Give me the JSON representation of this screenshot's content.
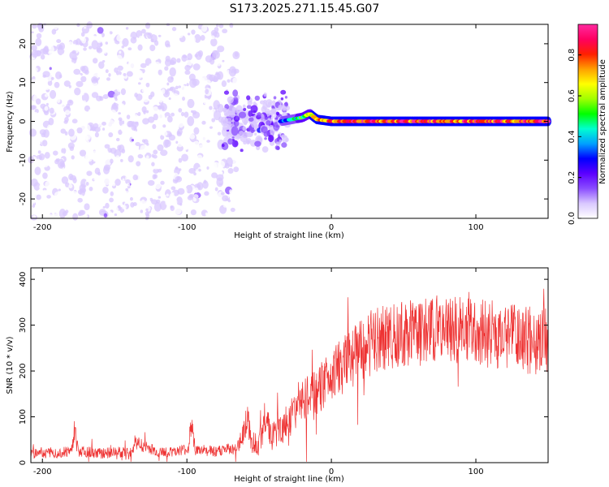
{
  "title": "S173.2025.271.15.45.G07",
  "chart_data": [
    {
      "type": "heatmap",
      "name": "spectrogram",
      "xlabel": "Height of straight line (km)",
      "ylabel": "Frequency (Hz)",
      "xlim": [
        -208,
        150
      ],
      "ylim": [
        -25,
        25
      ],
      "xticks": [
        -200,
        -100,
        0,
        100
      ],
      "yticks": [
        -20,
        -10,
        0,
        10,
        20
      ],
      "colorbar": {
        "label": "Normalized spectral amplitude",
        "range": [
          0,
          0.95
        ],
        "ticks": [
          0,
          0.2,
          0.4,
          0.6,
          0.8
        ],
        "colors": [
          "#ffffff",
          "#d9c8ff",
          "#8a4dff",
          "#5c00ff",
          "#0000ff",
          "#00a0ff",
          "#00ffd0",
          "#00ff00",
          "#a0ff00",
          "#ffff00",
          "#ffa000",
          "#ff2000",
          "#ff0060",
          "#ff2aa0"
        ]
      },
      "series": [
        {
          "name": "scatter_noise",
          "x_range": [
            -208,
            -65
          ],
          "y_range": [
            -25,
            25
          ],
          "amplitude_range": [
            0.02,
            0.12
          ]
        },
        {
          "name": "transition",
          "x_range": [
            -75,
            -30
          ],
          "y_range": [
            -8,
            8
          ],
          "amplitude_range": [
            0.05,
            0.3
          ]
        },
        {
          "name": "main_tone",
          "x": [
            -35,
            -20,
            -15,
            -10,
            0,
            20,
            50,
            80,
            110,
            150
          ],
          "y": [
            0,
            1,
            2,
            0.5,
            0,
            0,
            0,
            0,
            0,
            0
          ],
          "amplitude": [
            0.3,
            0.6,
            0.7,
            0.8,
            0.85,
            0.9,
            0.9,
            0.9,
            0.9,
            0.9
          ]
        }
      ]
    },
    {
      "type": "line",
      "name": "snr",
      "xlabel": "Height of straight line (km)",
      "ylabel": "SNR (10 * v/v)",
      "xlim": [
        -208,
        150
      ],
      "ylim": [
        0,
        425
      ],
      "xticks": [
        -200,
        -100,
        0,
        100
      ],
      "yticks": [
        0,
        100,
        200,
        300,
        400
      ],
      "color": "#ee3333",
      "series": [
        {
          "name": "SNR",
          "x": [
            -208,
            -190,
            -180,
            -178,
            -175,
            -160,
            -138,
            -136,
            -120,
            -99,
            -97,
            -94,
            -80,
            -65,
            -58,
            -55,
            -50,
            -45,
            -42,
            -40,
            -35,
            -30,
            -25,
            -20,
            -10,
            0,
            10,
            20,
            30,
            40,
            50,
            60,
            70,
            80,
            90,
            100,
            110,
            120,
            130,
            140,
            150
          ],
          "mean": [
            20,
            22,
            25,
            70,
            25,
            20,
            25,
            45,
            22,
            28,
            90,
            26,
            25,
            30,
            95,
            45,
            40,
            110,
            60,
            60,
            70,
            90,
            110,
            130,
            150,
            190,
            215,
            240,
            265,
            275,
            285,
            285,
            290,
            290,
            290,
            285,
            280,
            275,
            270,
            265,
            260
          ],
          "spread": [
            12,
            12,
            12,
            30,
            12,
            12,
            12,
            15,
            12,
            12,
            30,
            12,
            12,
            15,
            35,
            25,
            25,
            45,
            30,
            35,
            35,
            40,
            45,
            50,
            55,
            60,
            65,
            70,
            75,
            75,
            75,
            75,
            75,
            75,
            75,
            75,
            75,
            75,
            75,
            75,
            75
          ]
        }
      ]
    }
  ]
}
